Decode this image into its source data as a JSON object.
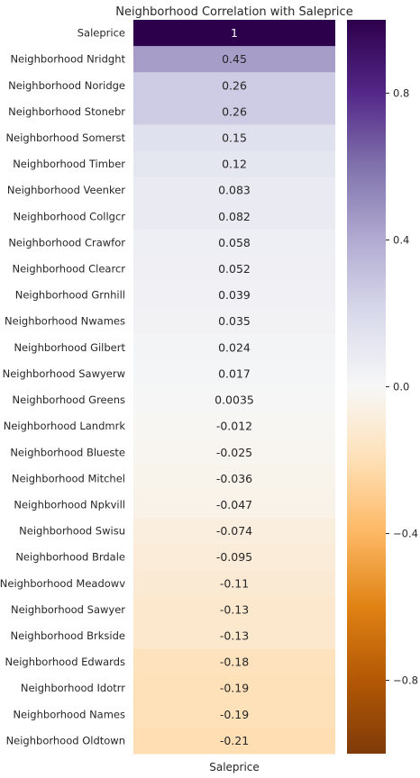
{
  "chart_data": {
    "type": "heatmap",
    "title": "Neighborhood Correlation with Saleprice",
    "xlabel": "",
    "ylabel": "",
    "columns": [
      "Saleprice"
    ],
    "rows": [
      {
        "label": "Saleprice",
        "value": 1,
        "text": "1"
      },
      {
        "label": "Neighborhood Nridght",
        "value": 0.45,
        "text": "0.45"
      },
      {
        "label": "Neighborhood Noridge",
        "value": 0.26,
        "text": "0.26"
      },
      {
        "label": "Neighborhood Stonebr",
        "value": 0.26,
        "text": "0.26"
      },
      {
        "label": "Neighborhood Somerst",
        "value": 0.15,
        "text": "0.15"
      },
      {
        "label": "Neighborhood Timber",
        "value": 0.12,
        "text": "0.12"
      },
      {
        "label": "Neighborhood Veenker",
        "value": 0.083,
        "text": "0.083"
      },
      {
        "label": "Neighborhood Collgcr",
        "value": 0.082,
        "text": "0.082"
      },
      {
        "label": "Neighborhood Crawfor",
        "value": 0.058,
        "text": "0.058"
      },
      {
        "label": "Neighborhood Clearcr",
        "value": 0.052,
        "text": "0.052"
      },
      {
        "label": "Neighborhood Grnhill",
        "value": 0.039,
        "text": "0.039"
      },
      {
        "label": "Neighborhood Nwames",
        "value": 0.035,
        "text": "0.035"
      },
      {
        "label": "Neighborhood Gilbert",
        "value": 0.024,
        "text": "0.024"
      },
      {
        "label": "Neighborhood Sawyerw",
        "value": 0.017,
        "text": "0.017"
      },
      {
        "label": "Neighborhood Greens",
        "value": 0.0035,
        "text": "0.0035"
      },
      {
        "label": "Neighborhood Landmrk",
        "value": -0.012,
        "text": "-0.012"
      },
      {
        "label": "Neighborhood Blueste",
        "value": -0.025,
        "text": "-0.025"
      },
      {
        "label": "Neighborhood Mitchel",
        "value": -0.036,
        "text": "-0.036"
      },
      {
        "label": "Neighborhood Npkvill",
        "value": -0.047,
        "text": "-0.047"
      },
      {
        "label": "Neighborhood Swisu",
        "value": -0.074,
        "text": "-0.074"
      },
      {
        "label": "Neighborhood Brdale",
        "value": -0.095,
        "text": "-0.095"
      },
      {
        "label": "Neighborhood Meadowv",
        "value": -0.11,
        "text": "-0.11"
      },
      {
        "label": "Neighborhood Sawyer",
        "value": -0.13,
        "text": "-0.13"
      },
      {
        "label": "Neighborhood Brkside",
        "value": -0.13,
        "text": "-0.13"
      },
      {
        "label": "Neighborhood Edwards",
        "value": -0.18,
        "text": "-0.18"
      },
      {
        "label": "Neighborhood Idotrr",
        "value": -0.19,
        "text": "-0.19"
      },
      {
        "label": "Neighborhood Names",
        "value": -0.19,
        "text": "-0.19"
      },
      {
        "label": "Neighborhood Oldtown",
        "value": -0.21,
        "text": "-0.21"
      }
    ],
    "colorbar": {
      "range": [
        -1,
        1
      ],
      "colormap": "PuOr",
      "ticks": [
        0.8,
        0.4,
        0.0,
        -0.4,
        -0.8
      ],
      "tick_labels": [
        "0.8",
        "0.4",
        "0.0",
        "−0.4",
        "−0.8"
      ]
    },
    "colors": {
      "stops": [
        "#7f3b08",
        "#b35806",
        "#e08214",
        "#fdb863",
        "#fee0b6",
        "#f7f7f7",
        "#d8daeb",
        "#b2abd2",
        "#8073ac",
        "#542788",
        "#2d004b"
      ]
    }
  }
}
